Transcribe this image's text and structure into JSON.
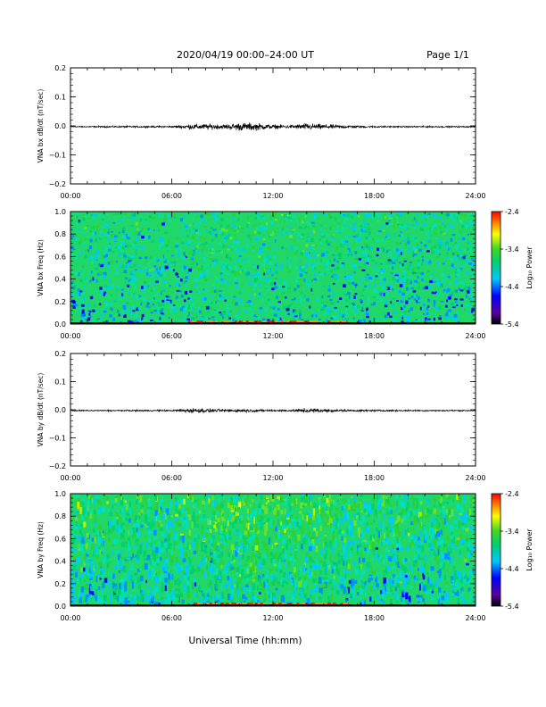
{
  "header": {
    "title": "2020/04/19  00:00–24:00 UT",
    "page": "Page 1/1"
  },
  "xaxis": {
    "label": "Universal Time (hh:mm)",
    "ticks": [
      "00:00",
      "06:00",
      "12:00",
      "18:00",
      "24:00"
    ]
  },
  "chart_data": [
    {
      "type": "line",
      "ylabel": "VNA bx dB/dt (nT/sec)",
      "xlim": [
        0,
        24
      ],
      "ylim": [
        -0.2,
        0.2
      ],
      "yticks": [
        "0.2",
        "0.1",
        "0.0",
        "−0.1",
        "−0.2"
      ],
      "series": [
        {
          "x": [
            0,
            6,
            7,
            8,
            9,
            10,
            11,
            12,
            13,
            14,
            15,
            16,
            17,
            18,
            24
          ],
          "envelope": [
            0.003,
            0.004,
            0.012,
            0.014,
            0.011,
            0.02,
            0.018,
            0.01,
            0.009,
            0.016,
            0.012,
            0.009,
            0.006,
            0.004,
            0.003
          ]
        }
      ]
    },
    {
      "type": "heatmap",
      "ylabel": "VNA bx Freq (Hz)",
      "xlim": [
        0,
        24
      ],
      "ylim": [
        0.0,
        1.0
      ],
      "yticks": [
        "1.0",
        "0.8",
        "0.6",
        "0.4",
        "0.2",
        "0.0"
      ],
      "colorbar": {
        "label": "Log₁₀ Power",
        "range": [
          -5.4,
          -2.4
        ],
        "ticks": [
          "-2.4",
          "-3.4",
          "-4.4",
          "-5.4"
        ]
      }
    },
    {
      "type": "line",
      "ylabel": "VNA by dB/dt (nT/sec)",
      "xlim": [
        0,
        24
      ],
      "ylim": [
        -0.2,
        0.2
      ],
      "yticks": [
        "0.2",
        "0.1",
        "0.0",
        "−0.1",
        "−0.2"
      ],
      "series": [
        {
          "x": [
            0,
            6,
            7,
            8,
            9,
            10,
            11,
            12,
            13,
            14,
            15,
            16,
            17,
            18,
            24
          ],
          "envelope": [
            0.003,
            0.004,
            0.013,
            0.01,
            0.007,
            0.009,
            0.006,
            0.005,
            0.005,
            0.012,
            0.009,
            0.006,
            0.005,
            0.004,
            0.003
          ]
        }
      ]
    },
    {
      "type": "heatmap",
      "ylabel": "VNA by Freq (Hz)",
      "xlim": [
        0,
        24
      ],
      "ylim": [
        0.0,
        1.0
      ],
      "yticks": [
        "1.0",
        "0.8",
        "0.6",
        "0.4",
        "0.2",
        "0.0"
      ],
      "colorbar": {
        "label": "Log₁₀ Power",
        "range": [
          -5.4,
          -2.4
        ],
        "ticks": [
          "-2.4",
          "-3.4",
          "-4.4",
          "-5.4"
        ]
      }
    }
  ]
}
